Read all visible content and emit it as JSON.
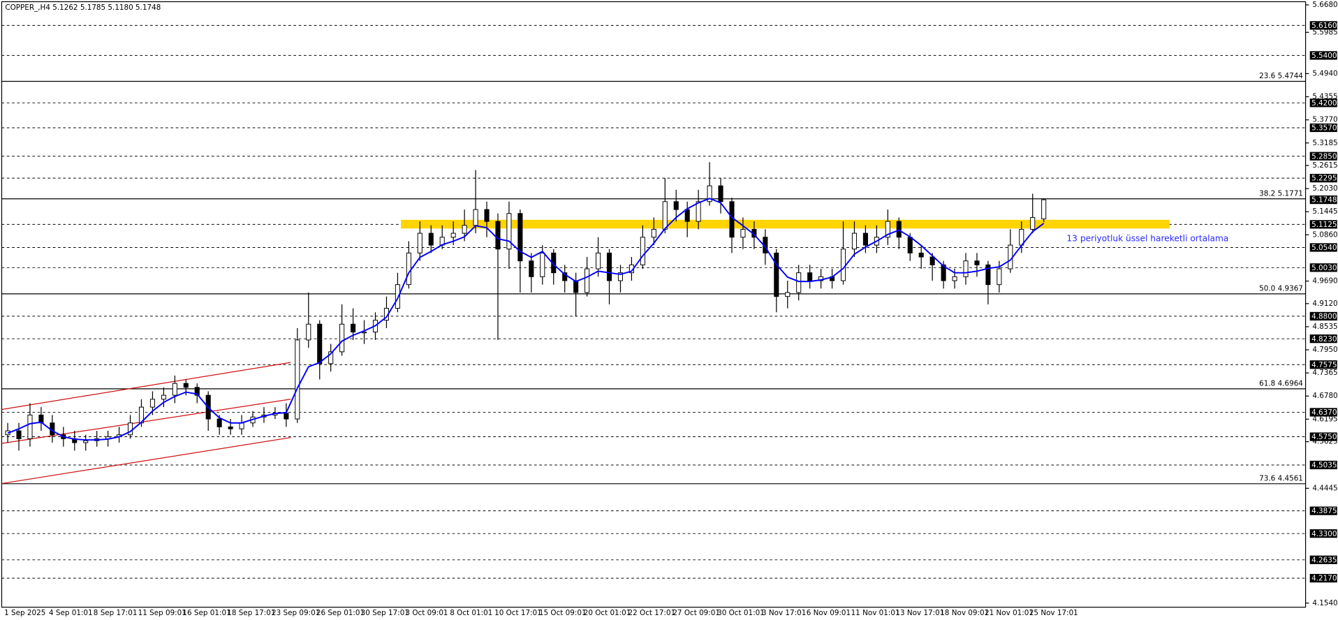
{
  "chart_data": {
    "type": "candlestick",
    "title": "COPPER_,H4  5.1262 5.1785 5.1180 5.1748",
    "categories": [
      "1 Sep 2025",
      null,
      null,
      null,
      "4 Sep 01:01",
      null,
      null,
      null,
      "8 Sep 17:01",
      null,
      null,
      null,
      "11 Sep 09:01",
      null,
      null,
      null,
      "16 Sep 01:01",
      null,
      null,
      null,
      "18 Sep 17:01",
      null,
      null,
      null,
      "23 Sep 09:01",
      null,
      null,
      null,
      "26 Sep 01:01",
      null,
      null,
      null,
      "30 Sep 17:01",
      null,
      null,
      null,
      "3 Oct 09:01",
      null,
      null,
      null,
      "8 Oct 01:01",
      null,
      null,
      null,
      "10 Oct 17:01",
      null,
      null,
      null,
      "15 Oct 09:01",
      null,
      null,
      null,
      "20 Oct 01:01",
      null,
      null,
      null,
      "22 Oct 17:01",
      null,
      null,
      null,
      "27 Oct 09:01",
      null,
      null,
      null,
      "30 Oct 01:01",
      null,
      null,
      null,
      "3 Nov 17:01",
      null,
      null,
      null,
      "6 Nov 09:01",
      null,
      null,
      null,
      "11 Nov 01:01",
      null,
      null,
      null,
      "13 Nov 17:01",
      null,
      null,
      null,
      "18 Nov 09:01",
      null,
      null,
      null,
      "21 Nov 01:01",
      null,
      null,
      null,
      "25 Nov 17:01",
      null
    ],
    "open": [
      4.58,
      4.59,
      4.57,
      4.63,
      4.61,
      4.58,
      4.57,
      4.56,
      4.565,
      4.57,
      4.575,
      4.58,
      4.61,
      4.65,
      4.67,
      4.68,
      4.71,
      4.7,
      4.68,
      4.62,
      4.6,
      4.595,
      4.61,
      4.625,
      4.63,
      4.635,
      4.62,
      4.82,
      4.86,
      4.76,
      4.79,
      4.86,
      4.84,
      4.84,
      4.87,
      4.9,
      4.96,
      5.04,
      5.09,
      5.06,
      5.08,
      5.09,
      5.11,
      5.15,
      5.12,
      5.05,
      5.14,
      5.02,
      4.98,
      5.04,
      4.99,
      4.97,
      4.94,
      5.0,
      5.04,
      4.97,
      4.99,
      5.01,
      5.08,
      5.1,
      5.17,
      5.15,
      5.12,
      5.17,
      5.21,
      5.17,
      5.08,
      5.1,
      5.08,
      5.04,
      4.93,
      4.94,
      4.99,
      4.97,
      4.98,
      4.97,
      5.05,
      5.09,
      5.06,
      5.08,
      5.12,
      5.08,
      5.04,
      5.03,
      5.01,
      4.97,
      4.98,
      5.02,
      5.01,
      4.96,
      5.0,
      5.06,
      5.1,
      5.1262
    ],
    "high": [
      4.61,
      4.61,
      4.66,
      4.65,
      4.63,
      4.6,
      4.59,
      4.58,
      4.59,
      4.59,
      4.6,
      4.63,
      4.67,
      4.69,
      4.7,
      4.73,
      4.72,
      4.71,
      4.69,
      4.63,
      4.62,
      4.63,
      4.64,
      4.65,
      4.65,
      4.66,
      4.85,
      4.94,
      4.87,
      4.81,
      4.91,
      4.9,
      4.87,
      4.89,
      4.93,
      4.99,
      5.07,
      5.12,
      5.11,
      5.11,
      5.12,
      5.15,
      5.25,
      5.17,
      5.14,
      5.17,
      5.15,
      5.04,
      5.06,
      5.05,
      5.01,
      4.99,
      5.03,
      5.08,
      5.05,
      5.01,
      5.03,
      5.11,
      5.13,
      5.23,
      5.2,
      5.17,
      5.2,
      5.27,
      5.23,
      5.18,
      5.13,
      5.12,
      5.1,
      5.05,
      4.97,
      5.01,
      5.01,
      5.0,
      5.0,
      5.12,
      5.12,
      5.11,
      5.11,
      5.15,
      5.13,
      5.09,
      5.06,
      5.04,
      5.02,
      5.0,
      5.04,
      5.04,
      5.02,
      5.02,
      5.1,
      5.12,
      5.19,
      5.1785
    ],
    "low": [
      4.56,
      4.54,
      4.55,
      4.59,
      4.56,
      4.55,
      4.54,
      4.54,
      4.55,
      4.55,
      4.56,
      4.57,
      4.6,
      4.63,
      4.65,
      4.66,
      4.68,
      4.66,
      4.59,
      4.58,
      4.58,
      4.58,
      4.6,
      4.61,
      4.62,
      4.6,
      4.61,
      4.8,
      4.72,
      4.74,
      4.78,
      4.82,
      4.81,
      4.82,
      4.85,
      4.89,
      4.95,
      5.02,
      5.04,
      5.05,
      5.06,
      5.07,
      5.09,
      5.08,
      4.82,
      5.0,
      4.94,
      4.94,
      4.96,
      4.96,
      4.94,
      4.88,
      4.93,
      4.98,
      4.91,
      4.94,
      4.97,
      5.0,
      5.06,
      5.09,
      5.12,
      5.08,
      5.1,
      5.16,
      5.14,
      5.04,
      5.05,
      5.05,
      5.01,
      4.89,
      4.9,
      4.92,
      4.95,
      4.95,
      4.95,
      4.96,
      5.03,
      5.04,
      5.04,
      5.06,
      5.05,
      5.02,
      5.0,
      4.97,
      4.95,
      4.95,
      4.96,
      4.98,
      4.91,
      4.94,
      4.99,
      5.04,
      5.09,
      5.118
    ],
    "close": [
      4.59,
      4.57,
      4.63,
      4.61,
      4.58,
      4.57,
      4.56,
      4.565,
      4.57,
      4.575,
      4.58,
      4.61,
      4.65,
      4.67,
      4.68,
      4.71,
      4.7,
      4.68,
      4.62,
      4.6,
      4.595,
      4.61,
      4.625,
      4.63,
      4.635,
      4.62,
      4.82,
      4.86,
      4.76,
      4.79,
      4.86,
      4.84,
      4.84,
      4.87,
      4.9,
      4.96,
      5.04,
      5.09,
      5.06,
      5.08,
      5.09,
      5.11,
      5.15,
      5.12,
      5.05,
      5.14,
      5.02,
      4.98,
      5.04,
      4.99,
      4.97,
      4.94,
      5.0,
      5.04,
      4.97,
      4.99,
      5.01,
      5.08,
      5.1,
      5.17,
      5.15,
      5.12,
      5.17,
      5.21,
      5.17,
      5.08,
      5.1,
      5.08,
      5.04,
      4.93,
      4.94,
      4.99,
      4.97,
      4.98,
      4.97,
      5.05,
      5.09,
      5.06,
      5.08,
      5.12,
      5.08,
      5.04,
      5.03,
      5.01,
      4.97,
      4.98,
      5.02,
      5.01,
      4.96,
      5.0,
      5.06,
      5.1,
      5.13,
      5.1748
    ],
    "ema": {
      "color": "#0000ff",
      "values": [
        4.584,
        4.595,
        4.608,
        4.612,
        4.59,
        4.575,
        4.569,
        4.567,
        4.567,
        4.569,
        4.575,
        4.588,
        4.612,
        4.64,
        4.662,
        4.677,
        4.688,
        4.683,
        4.649,
        4.623,
        4.61,
        4.61,
        4.619,
        4.627,
        4.634,
        4.636,
        4.698,
        4.752,
        4.763,
        4.785,
        4.817,
        4.832,
        4.843,
        4.856,
        4.878,
        4.925,
        4.99,
        5.029,
        5.044,
        5.061,
        5.07,
        5.081,
        5.109,
        5.104,
        5.076,
        5.07,
        5.044,
        5.029,
        5.044,
        5.011,
        4.986,
        4.968,
        4.979,
        4.994,
        4.99,
        4.986,
        4.994,
        5.033,
        5.065,
        5.102,
        5.13,
        5.152,
        5.167,
        5.178,
        5.167,
        5.13,
        5.109,
        5.087,
        5.055,
        5.011,
        4.979,
        4.968,
        4.968,
        4.972,
        4.979,
        5.001,
        5.037,
        5.055,
        5.07,
        5.087,
        5.098,
        5.081,
        5.059,
        5.033,
        5.007,
        4.99,
        4.99,
        4.994,
        5.001,
        5.005,
        5.022,
        5.059,
        5.094,
        5.115
      ]
    },
    "annotation": {
      "text": "13 periyotluk üssel hareketli ortalama",
      "color": "#2a2aff"
    },
    "xlim": [
      -0.54,
      116.5
    ],
    "ylim": [
      4.1436,
      5.676
    ],
    "yticks": [
      {
        "value": 5.668,
        "label": "5.6680"
      },
      {
        "value": 5.5985,
        "label": "5.5985"
      },
      {
        "value": 5.494,
        "label": "5.4940"
      },
      {
        "value": 5.4355,
        "label": "5.4355"
      },
      {
        "value": 5.377,
        "label": "5.3770"
      },
      {
        "value": 5.3185,
        "label": "5.3185"
      },
      {
        "value": 5.2615,
        "label": "5.2615"
      },
      {
        "value": 5.203,
        "label": "5.2030"
      },
      {
        "value": 5.1445,
        "label": "5.1445"
      },
      {
        "value": 5.086,
        "label": "5.0860"
      },
      {
        "value": 4.969,
        "label": "4.9690"
      },
      {
        "value": 4.912,
        "label": "4.9120"
      },
      {
        "value": 4.8535,
        "label": "4.8535"
      },
      {
        "value": 4.795,
        "label": "4.7950"
      },
      {
        "value": 4.7365,
        "label": "4.7365"
      },
      {
        "value": 4.678,
        "label": "4.6780"
      },
      {
        "value": 4.6195,
        "label": "4.6195"
      },
      {
        "value": 4.5625,
        "label": "4.5625"
      },
      {
        "value": 4.4445,
        "label": "4.4445"
      },
      {
        "value": 4.154,
        "label": "4.1540"
      }
    ],
    "levels": [
      {
        "value": 5.616,
        "label": "5.6160"
      },
      {
        "value": 5.54,
        "label": "5.5400"
      },
      {
        "value": 5.42,
        "label": "5.4200"
      },
      {
        "value": 5.357,
        "label": "5.3570"
      },
      {
        "value": 5.285,
        "label": "5.2850"
      },
      {
        "value": 5.2295,
        "label": "5.2295"
      },
      {
        "value": 5.1125,
        "label": "5.1125"
      },
      {
        "value": 5.054,
        "label": "5.0540"
      },
      {
        "value": 5.003,
        "label": "5.0030"
      },
      {
        "value": 4.88,
        "label": "4.8800"
      },
      {
        "value": 4.823,
        "label": "4.8230"
      },
      {
        "value": 4.7575,
        "label": "4.7575"
      },
      {
        "value": 4.637,
        "label": "4.6370"
      },
      {
        "value": 4.575,
        "label": "4.5750"
      },
      {
        "value": 4.5035,
        "label": "4.5035"
      },
      {
        "value": 4.3875,
        "label": "4.3875"
      },
      {
        "value": 4.33,
        "label": "4.3300"
      },
      {
        "value": 4.2635,
        "label": "4.2635"
      },
      {
        "value": 4.217,
        "label": "4.2170"
      }
    ],
    "fibonacci": [
      {
        "value": 5.4744,
        "label": "23.6 5.4744"
      },
      {
        "value": 5.1771,
        "label": "38.2 5.1771"
      },
      {
        "value": 4.9367,
        "label": "50.0 4.9367"
      },
      {
        "value": 4.6964,
        "label": "61.8 4.6964"
      },
      {
        "value": 4.4561,
        "label": "73.6 4.4561"
      }
    ],
    "trend_color": "#d01010",
    "trend_lines": [
      {
        "x": [
          -0.54,
          25.4
        ],
        "y": [
          4.4566,
          4.573
        ]
      },
      {
        "x": [
          -0.54,
          25.4
        ],
        "y": [
          4.558,
          4.67
        ]
      },
      {
        "x": [
          -0.54,
          25.4
        ],
        "y": [
          4.644,
          4.763
        ]
      }
    ],
    "zone": {
      "x": [
        35.3,
        104.3
      ],
      "y": [
        5.102,
        5.124
      ],
      "color": "#ffd400"
    }
  }
}
